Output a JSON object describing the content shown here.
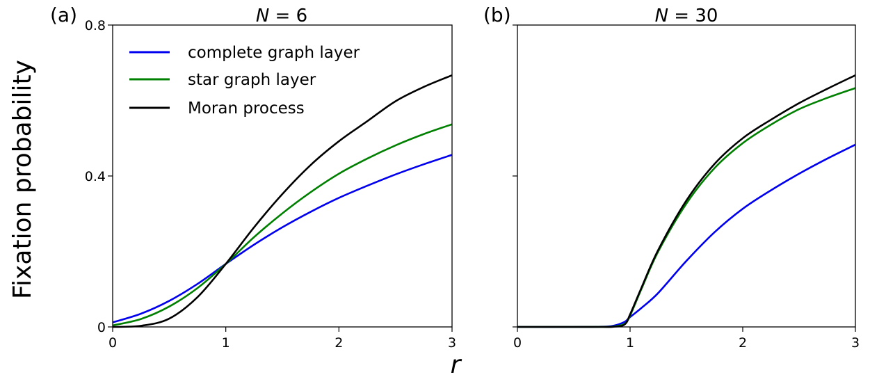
{
  "figure": {
    "ylabel": "Fixation probability",
    "xlabel": "r"
  },
  "legend": [
    {
      "label": "complete graph layer",
      "color": "#0000ee"
    },
    {
      "label": "star graph layer",
      "color": "#008000"
    },
    {
      "label": "Moran process",
      "color": "#000000"
    }
  ],
  "chart_data": [
    {
      "type": "line",
      "panel_label": "(a)",
      "title_var": "N",
      "title_rest": " = 6",
      "xlim": [
        0,
        3
      ],
      "ylim": [
        0,
        0.8
      ],
      "xticks": [
        "0",
        "1",
        "2",
        "3"
      ],
      "yticks": [
        "0",
        "0.4",
        "0.8"
      ],
      "ytick_values": [
        0,
        0.4,
        0.8
      ],
      "grid": false,
      "legend_position": "top-left",
      "x": [
        0,
        0.25,
        0.5,
        0.75,
        1.0,
        1.25,
        1.5,
        1.75,
        2.0,
        2.25,
        2.5,
        2.75,
        3.0
      ],
      "series": [
        {
          "name": "complete graph layer",
          "color": "#0000ee",
          "values": [
            0.012,
            0.035,
            0.069,
            0.114,
            0.167,
            0.218,
            0.264,
            0.305,
            0.342,
            0.374,
            0.404,
            0.431,
            0.456
          ]
        },
        {
          "name": "star graph layer",
          "color": "#008000",
          "values": [
            0.004,
            0.021,
            0.054,
            0.103,
            0.167,
            0.238,
            0.301,
            0.357,
            0.406,
            0.446,
            0.481,
            0.511,
            0.537
          ]
        },
        {
          "name": "Moran process",
          "color": "#000000",
          "values": [
            0.0,
            0.003,
            0.022,
            0.079,
            0.167,
            0.264,
            0.352,
            0.429,
            0.492,
            0.545,
            0.598,
            0.636,
            0.667
          ]
        }
      ]
    },
    {
      "type": "line",
      "panel_label": "(b)",
      "title_var": "N",
      "title_rest": " = 30",
      "xlim": [
        0,
        3
      ],
      "ylim": [
        0,
        0.8
      ],
      "xticks": [
        "0",
        "1",
        "2",
        "3"
      ],
      "yticks": [],
      "ytick_values": [
        0,
        0.4,
        0.8
      ],
      "grid": false,
      "x": [
        0,
        0.5,
        0.75,
        0.85,
        0.95,
        1.0,
        1.1,
        1.25,
        1.5,
        1.75,
        2.0,
        2.25,
        2.5,
        2.75,
        3.0
      ],
      "series": [
        {
          "name": "complete graph layer",
          "color": "#0000ee",
          "values": [
            0.0,
            0.0,
            0.0005,
            0.003,
            0.013,
            0.026,
            0.05,
            0.09,
            0.175,
            0.251,
            0.313,
            0.362,
            0.406,
            0.446,
            0.483
          ]
        },
        {
          "name": "star graph layer",
          "color": "#008000",
          "values": [
            0.0,
            0.0,
            0.0001,
            0.001,
            0.008,
            0.03,
            0.1,
            0.2,
            0.327,
            0.421,
            0.487,
            0.536,
            0.577,
            0.607,
            0.633
          ]
        },
        {
          "name": "Moran process",
          "color": "#000000",
          "values": [
            0.0,
            0.0,
            0.0,
            0.0004,
            0.006,
            0.033,
            0.103,
            0.204,
            0.335,
            0.432,
            0.5,
            0.549,
            0.593,
            0.631,
            0.667
          ]
        }
      ]
    }
  ]
}
